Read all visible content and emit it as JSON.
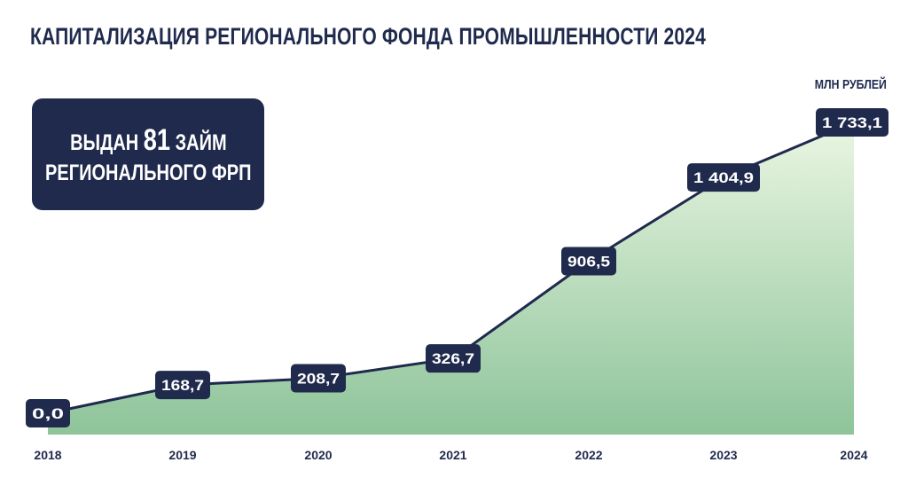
{
  "header": {
    "title": "КАПИТАЛИЗАЦИЯ РЕГИОНАЛЬНОГО ФОНДА ПРОМЫШЛЕННОСТИ 2024",
    "unit": "МЛН РУБЛЕЙ"
  },
  "info_box": {
    "prefix": "ВЫДАН",
    "number": "81",
    "suffix": "ЗАЙМ",
    "line2": "РЕГИОНАЛЬНОГО ФРП"
  },
  "colors": {
    "navy": "#1f2a4d",
    "area_top": "#eaf6e2",
    "area_bottom": "#8ec49a"
  },
  "chart_data": {
    "type": "area",
    "title": "КАПИТАЛИЗАЦИЯ РЕГИОНАЛЬНОГО ФОНДА ПРОМЫШЛЕННОСТИ 2024",
    "ylabel": "МЛН РУБЛЕЙ",
    "categories": [
      "2018",
      "2019",
      "2020",
      "2021",
      "2022",
      "2023",
      "2024"
    ],
    "values": [
      0.0,
      168.7,
      208.7,
      326.7,
      906.5,
      1404.9,
      1733.1
    ],
    "labels": [
      "0,0",
      "168,7",
      "208,7",
      "326,7",
      "906,5",
      "1 404,9",
      "1 733,1"
    ],
    "grid": false,
    "legend": "none"
  }
}
